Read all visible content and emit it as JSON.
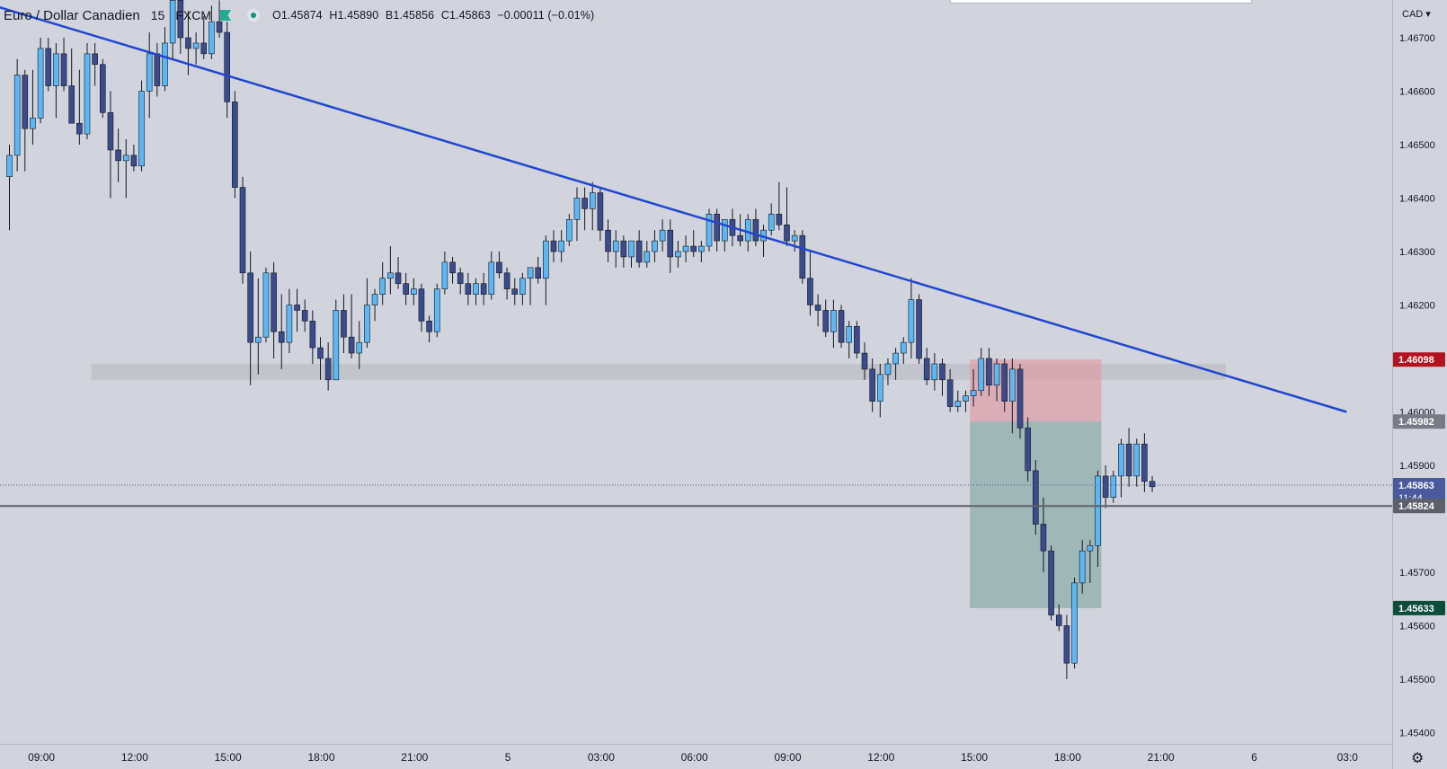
{
  "header": {
    "symbol": "Euro / Dollar Canadien",
    "interval": "15",
    "exchange": "FXCM",
    "open": "O1.45874",
    "high": "H1.45890",
    "low": "B1.45856",
    "close": "C1.45863",
    "change": "−0.00011 (−0.01%)"
  },
  "axis_currency": "CAD",
  "settings_icon": "gear-icon",
  "colors": {
    "background": "#d1d4dc",
    "up_candle": "#5bb8f5",
    "down_candle": "#3c4b8c",
    "trendline": "#2146d0",
    "zone": "#bfc1c8",
    "stop_zone": "#e09aa3",
    "target_zone": "#7fa49f",
    "stop_label": "#b3121f",
    "entry_label": "#787b86",
    "target_label": "#0c4d3a",
    "price_label": "#4a5a9c"
  },
  "chart_data": {
    "type": "candlestick",
    "title": "Euro / Dollar Canadien",
    "interval": "15",
    "ylim": [
      1.4537,
      1.4677
    ],
    "y_ticks": [
      "1.46700",
      "1.46600",
      "1.46500",
      "1.46400",
      "1.46300",
      "1.46200",
      "1.46000",
      "1.45900",
      "1.45700",
      "1.45600",
      "1.45500",
      "1.45400"
    ],
    "x_ticks": [
      "09:00",
      "12:00",
      "15:00",
      "18:00",
      "21:00",
      "5",
      "03:00",
      "06:00",
      "09:00",
      "12:00",
      "15:00",
      "18:00",
      "21:00",
      "6",
      "03:0"
    ],
    "x_ticks_bar_index": [
      4,
      16,
      28,
      40,
      52,
      64,
      76,
      88,
      100,
      112,
      124,
      136,
      148,
      160,
      172
    ],
    "candles": [
      [
        1.4644,
        1.465,
        1.4634,
        1.4648
      ],
      [
        1.4648,
        1.4666,
        1.4645,
        1.4663
      ],
      [
        1.4663,
        1.4664,
        1.4645,
        1.4653
      ],
      [
        1.4653,
        1.4664,
        1.465,
        1.4655
      ],
      [
        1.4655,
        1.467,
        1.4654,
        1.4668
      ],
      [
        1.4668,
        1.467,
        1.466,
        1.4661
      ],
      [
        1.4661,
        1.4669,
        1.4655,
        1.4667
      ],
      [
        1.4667,
        1.467,
        1.466,
        1.4661
      ],
      [
        1.4661,
        1.4668,
        1.4655,
        1.4654
      ],
      [
        1.4654,
        1.4664,
        1.465,
        1.4652
      ],
      [
        1.4652,
        1.4669,
        1.4651,
        1.4667
      ],
      [
        1.4667,
        1.4669,
        1.4661,
        1.4665
      ],
      [
        1.4665,
        1.4666,
        1.4655,
        1.4656
      ],
      [
        1.4656,
        1.466,
        1.464,
        1.4649
      ],
      [
        1.4649,
        1.4653,
        1.4643,
        1.4647
      ],
      [
        1.4647,
        1.4651,
        1.464,
        1.4648
      ],
      [
        1.4648,
        1.465,
        1.4645,
        1.4646
      ],
      [
        1.4646,
        1.4662,
        1.4645,
        1.466
      ],
      [
        1.466,
        1.4671,
        1.4655,
        1.4667
      ],
      [
        1.4667,
        1.4669,
        1.4659,
        1.4661
      ],
      [
        1.4661,
        1.4672,
        1.466,
        1.4669
      ],
      [
        1.4669,
        1.468,
        1.4666,
        1.4677
      ],
      [
        1.4677,
        1.468,
        1.4667,
        1.467
      ],
      [
        1.467,
        1.4675,
        1.4663,
        1.4668
      ],
      [
        1.4668,
        1.4671,
        1.4665,
        1.4669
      ],
      [
        1.4669,
        1.4674,
        1.4666,
        1.4667
      ],
      [
        1.4667,
        1.4676,
        1.4666,
        1.4673
      ],
      [
        1.4673,
        1.4677,
        1.467,
        1.4671
      ],
      [
        1.4671,
        1.4673,
        1.4655,
        1.4658
      ],
      [
        1.4658,
        1.466,
        1.464,
        1.4642
      ],
      [
        1.4642,
        1.4644,
        1.4624,
        1.4626
      ],
      [
        1.4626,
        1.463,
        1.4605,
        1.4613
      ],
      [
        1.4613,
        1.4625,
        1.4607,
        1.4614
      ],
      [
        1.4614,
        1.4627,
        1.4613,
        1.4626
      ],
      [
        1.4626,
        1.4628,
        1.461,
        1.4615
      ],
      [
        1.4615,
        1.4622,
        1.4608,
        1.4613
      ],
      [
        1.4613,
        1.4623,
        1.4611,
        1.462
      ],
      [
        1.462,
        1.4623,
        1.4615,
        1.4619
      ],
      [
        1.4619,
        1.4621,
        1.4615,
        1.4617
      ],
      [
        1.4617,
        1.4619,
        1.4609,
        1.4612
      ],
      [
        1.4612,
        1.4614,
        1.4606,
        1.461
      ],
      [
        1.461,
        1.4613,
        1.4604,
        1.4606
      ],
      [
        1.4606,
        1.4621,
        1.4606,
        1.4619
      ],
      [
        1.4619,
        1.4622,
        1.4611,
        1.4614
      ],
      [
        1.4614,
        1.4622,
        1.461,
        1.4611
      ],
      [
        1.4611,
        1.4617,
        1.4608,
        1.4613
      ],
      [
        1.4613,
        1.4625,
        1.4612,
        1.462
      ],
      [
        1.462,
        1.4623,
        1.4617,
        1.4622
      ],
      [
        1.4622,
        1.4628,
        1.462,
        1.4625
      ],
      [
        1.4625,
        1.4631,
        1.4622,
        1.4626
      ],
      [
        1.4626,
        1.4629,
        1.4623,
        1.4624
      ],
      [
        1.4624,
        1.4626,
        1.462,
        1.4622
      ],
      [
        1.4622,
        1.4625,
        1.462,
        1.4623
      ],
      [
        1.4623,
        1.4624,
        1.4615,
        1.4617
      ],
      [
        1.4617,
        1.4618,
        1.4613,
        1.4615
      ],
      [
        1.4615,
        1.4624,
        1.4614,
        1.4623
      ],
      [
        1.4623,
        1.463,
        1.4622,
        1.4628
      ],
      [
        1.4628,
        1.4629,
        1.4624,
        1.4626
      ],
      [
        1.4626,
        1.4627,
        1.4622,
        1.4624
      ],
      [
        1.4624,
        1.4626,
        1.462,
        1.4622
      ],
      [
        1.4622,
        1.4625,
        1.462,
        1.4624
      ],
      [
        1.4624,
        1.4626,
        1.462,
        1.4622
      ],
      [
        1.4622,
        1.463,
        1.4621,
        1.4628
      ],
      [
        1.4628,
        1.463,
        1.4625,
        1.4626
      ],
      [
        1.4626,
        1.4627,
        1.4621,
        1.4623
      ],
      [
        1.4623,
        1.4625,
        1.462,
        1.4622
      ],
      [
        1.4622,
        1.4626,
        1.462,
        1.4625
      ],
      [
        1.4625,
        1.4627,
        1.462,
        1.4627
      ],
      [
        1.4627,
        1.4629,
        1.4624,
        1.4625
      ],
      [
        1.4625,
        1.4633,
        1.462,
        1.4632
      ],
      [
        1.4632,
        1.4634,
        1.4628,
        1.463
      ],
      [
        1.463,
        1.4634,
        1.4628,
        1.4632
      ],
      [
        1.4632,
        1.4637,
        1.4631,
        1.4636
      ],
      [
        1.4636,
        1.4642,
        1.4632,
        1.464
      ],
      [
        1.464,
        1.4642,
        1.4634,
        1.4638
      ],
      [
        1.4638,
        1.4643,
        1.4634,
        1.4641
      ],
      [
        1.4641,
        1.4642,
        1.4632,
        1.4634
      ],
      [
        1.4634,
        1.4636,
        1.4628,
        1.463
      ],
      [
        1.463,
        1.4634,
        1.4627,
        1.4632
      ],
      [
        1.4632,
        1.4633,
        1.4627,
        1.4629
      ],
      [
        1.4629,
        1.4632,
        1.4627,
        1.4632
      ],
      [
        1.4632,
        1.4634,
        1.4627,
        1.4628
      ],
      [
        1.4628,
        1.4632,
        1.4627,
        1.463
      ],
      [
        1.463,
        1.4634,
        1.4628,
        1.4632
      ],
      [
        1.4632,
        1.4636,
        1.463,
        1.4634
      ],
      [
        1.4634,
        1.4636,
        1.4626,
        1.4629
      ],
      [
        1.4629,
        1.4632,
        1.4627,
        1.463
      ],
      [
        1.463,
        1.4633,
        1.4628,
        1.4631
      ],
      [
        1.4631,
        1.4634,
        1.4629,
        1.463
      ],
      [
        1.463,
        1.4632,
        1.4628,
        1.4631
      ],
      [
        1.4631,
        1.4638,
        1.463,
        1.4637
      ],
      [
        1.4637,
        1.4638,
        1.463,
        1.4632
      ],
      [
        1.4632,
        1.4636,
        1.463,
        1.4636
      ],
      [
        1.4636,
        1.4638,
        1.4631,
        1.4633
      ],
      [
        1.4633,
        1.4637,
        1.4631,
        1.4632
      ],
      [
        1.4632,
        1.4637,
        1.463,
        1.4636
      ],
      [
        1.4636,
        1.4638,
        1.4631,
        1.4632
      ],
      [
        1.4632,
        1.4635,
        1.4629,
        1.4634
      ],
      [
        1.4634,
        1.4639,
        1.4633,
        1.4637
      ],
      [
        1.4637,
        1.4643,
        1.4634,
        1.4635
      ],
      [
        1.4635,
        1.4642,
        1.4631,
        1.4632
      ],
      [
        1.4632,
        1.4634,
        1.463,
        1.4633
      ],
      [
        1.4633,
        1.4634,
        1.4624,
        1.4625
      ],
      [
        1.4625,
        1.463,
        1.4618,
        1.462
      ],
      [
        1.462,
        1.4622,
        1.4616,
        1.4619
      ],
      [
        1.4619,
        1.4621,
        1.4614,
        1.4615
      ],
      [
        1.4615,
        1.4621,
        1.4612,
        1.4619
      ],
      [
        1.4619,
        1.462,
        1.4612,
        1.4613
      ],
      [
        1.4613,
        1.4617,
        1.461,
        1.4616
      ],
      [
        1.4616,
        1.4617,
        1.461,
        1.4611
      ],
      [
        1.4611,
        1.4613,
        1.4606,
        1.4608
      ],
      [
        1.4608,
        1.461,
        1.46,
        1.4602
      ],
      [
        1.4602,
        1.4609,
        1.4599,
        1.4607
      ],
      [
        1.4607,
        1.461,
        1.4605,
        1.4609
      ],
      [
        1.4609,
        1.4612,
        1.4606,
        1.4611
      ],
      [
        1.4611,
        1.4614,
        1.4609,
        1.4613
      ],
      [
        1.4613,
        1.4625,
        1.461,
        1.4621
      ],
      [
        1.4621,
        1.4622,
        1.4609,
        1.461
      ],
      [
        1.461,
        1.4612,
        1.4605,
        1.4606
      ],
      [
        1.4606,
        1.4611,
        1.4604,
        1.4609
      ],
      [
        1.4609,
        1.461,
        1.4603,
        1.4606
      ],
      [
        1.4606,
        1.4608,
        1.46,
        1.4601
      ],
      [
        1.4601,
        1.4604,
        1.46,
        1.4602
      ],
      [
        1.4602,
        1.4604,
        1.46,
        1.4603
      ],
      [
        1.4603,
        1.4608,
        1.4601,
        1.4604
      ],
      [
        1.4604,
        1.4612,
        1.4603,
        1.461
      ],
      [
        1.461,
        1.4612,
        1.4603,
        1.4605
      ],
      [
        1.4605,
        1.461,
        1.4602,
        1.4609
      ],
      [
        1.4609,
        1.461,
        1.46,
        1.4602
      ],
      [
        1.4602,
        1.461,
        1.4596,
        1.4608
      ],
      [
        1.4608,
        1.4609,
        1.4595,
        1.4597
      ],
      [
        1.4597,
        1.4599,
        1.4587,
        1.4589
      ],
      [
        1.4589,
        1.4591,
        1.4577,
        1.4579
      ],
      [
        1.4579,
        1.4584,
        1.457,
        1.4574
      ],
      [
        1.4574,
        1.4575,
        1.4561,
        1.4562
      ],
      [
        1.4562,
        1.4564,
        1.4559,
        1.456
      ],
      [
        1.456,
        1.4562,
        1.455,
        1.4553
      ],
      [
        1.4553,
        1.4569,
        1.4552,
        1.4568
      ],
      [
        1.4568,
        1.4576,
        1.4566,
        1.4574
      ],
      [
        1.4574,
        1.4576,
        1.4568,
        1.4575
      ],
      [
        1.4575,
        1.4589,
        1.4571,
        1.4588
      ],
      [
        1.4588,
        1.459,
        1.4582,
        1.4584
      ],
      [
        1.4584,
        1.4589,
        1.4583,
        1.4588
      ],
      [
        1.4588,
        1.4595,
        1.4584,
        1.4594
      ],
      [
        1.4594,
        1.4597,
        1.4586,
        1.4588
      ],
      [
        1.4588,
        1.4595,
        1.4586,
        1.4594
      ],
      [
        1.4594,
        1.4596,
        1.4585,
        1.4587
      ],
      [
        1.4587,
        1.4588,
        1.4585,
        1.4586
      ]
    ],
    "lines": [
      {
        "name": "trendline",
        "from": {
          "bar": -18,
          "price": 1.4683
        },
        "to": {
          "bar": 172,
          "price": 1.46
        }
      },
      {
        "name": "current-price-line",
        "price": 1.45863,
        "style": "dotted"
      },
      {
        "name": "horizontal-line",
        "price": 1.45824
      }
    ],
    "zones": [
      {
        "name": "support-zone",
        "from_bar": 11,
        "to_bar": 156,
        "price_top": 1.4609,
        "price_bottom": 1.4606
      },
      {
        "name": "stop-zone",
        "from_bar": 124,
        "to_bar": 140,
        "price_top": 1.46098,
        "price_bottom": 1.45982
      },
      {
        "name": "target-zone",
        "from_bar": 124,
        "to_bar": 140,
        "price_top": 1.45982,
        "price_bottom": 1.45633
      }
    ],
    "price_labels": [
      {
        "name": "stop-label",
        "text": "1.46098",
        "price": 1.46098,
        "color": "#b3121f"
      },
      {
        "name": "entry-label",
        "text": "1.45982",
        "price": 1.45982,
        "color": "#787b86"
      },
      {
        "name": "last-price-label",
        "text": "1.45863",
        "sub": "11:44",
        "price": 1.45863,
        "color": "#4a5a9c"
      },
      {
        "name": "line-label",
        "text": "1.45824",
        "price": 1.45824,
        "color": "#5d606b"
      },
      {
        "name": "target-label",
        "text": "1.45633",
        "price": 1.45633,
        "color": "#0c4d3a"
      }
    ]
  }
}
